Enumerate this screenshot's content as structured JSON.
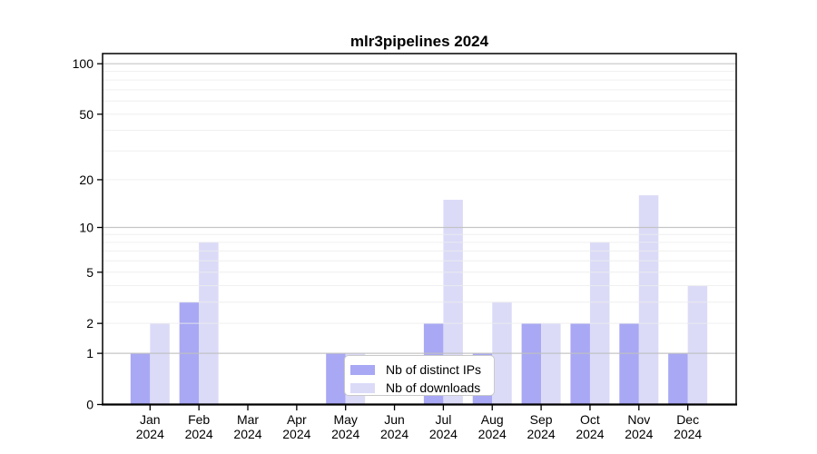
{
  "chart_data": {
    "type": "bar",
    "title": "mlr3pipelines 2024",
    "categories": [
      "Jan",
      "Feb",
      "Mar",
      "Apr",
      "May",
      "Jun",
      "Jul",
      "Aug",
      "Sep",
      "Oct",
      "Nov",
      "Dec"
    ],
    "year_label": "2024",
    "series": [
      {
        "name": "Nb of distinct IPs",
        "color": "#a8a8f4",
        "values": [
          1,
          3,
          0,
          0,
          1,
          0,
          2,
          1,
          2,
          2,
          2,
          1
        ]
      },
      {
        "name": "Nb of downloads",
        "color": "#dbdbf8",
        "values": [
          2,
          8,
          0,
          0,
          1,
          0,
          15,
          3,
          2,
          8,
          16,
          4
        ]
      }
    ],
    "y_ticks": [
      0,
      1,
      2,
      5,
      10,
      20,
      50,
      100
    ],
    "y_scale": "log1p",
    "ylim": [
      0,
      115
    ],
    "grid": true,
    "major_gridlines": [
      1,
      10,
      100
    ],
    "minor_gridlines": [
      2,
      3,
      4,
      5,
      6,
      7,
      8,
      9,
      20,
      30,
      40,
      50,
      60,
      70,
      80,
      90
    ],
    "legend_position": "inside-bottom-center",
    "colors": {
      "major_grid": "#c0c0c0",
      "minor_grid": "#ededed",
      "spine": "#000000",
      "text": "#000000"
    }
  }
}
